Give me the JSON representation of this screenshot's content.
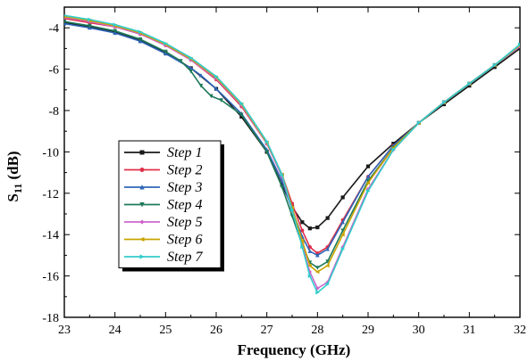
{
  "chart_data": {
    "type": "line",
    "xlabel": "Frequency (GHz)",
    "ylabel_main": "S",
    "ylabel_sub": "11",
    "ylabel_unit": " (dB)",
    "xlim": [
      23,
      32
    ],
    "ylim": [
      -18,
      -3
    ],
    "x_ticks": [
      "23",
      "24",
      "25",
      "26",
      "27",
      "28",
      "29",
      "30",
      "31",
      "32"
    ],
    "y_ticks": [
      "-4",
      "-6",
      "-8",
      "-10",
      "-12",
      "-14",
      "-16",
      "-18"
    ],
    "grid": false,
    "legend_position": "center-left",
    "series": [
      {
        "name": "Step 1",
        "color": "#1a1a1a",
        "marker": "square",
        "points": [
          [
            23,
            -3.75
          ],
          [
            23.5,
            -3.95
          ],
          [
            24,
            -4.2
          ],
          [
            24.5,
            -4.6
          ],
          [
            25,
            -5.2
          ],
          [
            25.5,
            -5.95
          ],
          [
            26,
            -6.95
          ],
          [
            26.5,
            -8.3
          ],
          [
            27,
            -10.0
          ],
          [
            27.3,
            -11.6
          ],
          [
            27.5,
            -12.65
          ],
          [
            27.7,
            -13.4
          ],
          [
            27.85,
            -13.7
          ],
          [
            28,
            -13.65
          ],
          [
            28.2,
            -13.2
          ],
          [
            28.5,
            -12.2
          ],
          [
            29,
            -10.7
          ],
          [
            29.5,
            -9.6
          ],
          [
            30,
            -8.6
          ],
          [
            30.5,
            -7.7
          ],
          [
            31,
            -6.8
          ],
          [
            31.5,
            -5.9
          ],
          [
            32,
            -5.0
          ]
        ]
      },
      {
        "name": "Step 2",
        "color": "#e0304a",
        "marker": "circle",
        "points": [
          [
            23,
            -3.55
          ],
          [
            23.5,
            -3.75
          ],
          [
            24,
            -3.95
          ],
          [
            24.5,
            -4.3
          ],
          [
            25,
            -4.85
          ],
          [
            25.5,
            -5.55
          ],
          [
            26,
            -6.5
          ],
          [
            26.5,
            -7.8
          ],
          [
            27,
            -9.6
          ],
          [
            27.3,
            -11.1
          ],
          [
            27.5,
            -12.5
          ],
          [
            27.7,
            -13.8
          ],
          [
            27.85,
            -14.6
          ],
          [
            28,
            -14.9
          ],
          [
            28.2,
            -14.6
          ],
          [
            28.5,
            -13.3
          ],
          [
            29,
            -11.2
          ],
          [
            29.5,
            -9.7
          ],
          [
            30,
            -8.6
          ],
          [
            30.5,
            -7.6
          ],
          [
            31,
            -6.7
          ],
          [
            31.5,
            -5.8
          ],
          [
            32,
            -4.9
          ]
        ]
      },
      {
        "name": "Step 3",
        "color": "#2f66b8",
        "marker": "triangle",
        "points": [
          [
            23,
            -3.8
          ],
          [
            23.5,
            -4.0
          ],
          [
            24,
            -4.25
          ],
          [
            24.5,
            -4.65
          ],
          [
            25,
            -5.25
          ],
          [
            25.5,
            -5.95
          ],
          [
            25.7,
            -6.3
          ],
          [
            26,
            -6.95
          ],
          [
            26.5,
            -8.15
          ],
          [
            27,
            -9.9
          ],
          [
            27.3,
            -11.4
          ],
          [
            27.5,
            -12.8
          ],
          [
            27.7,
            -14.1
          ],
          [
            27.85,
            -14.8
          ],
          [
            28,
            -15.0
          ],
          [
            28.2,
            -14.7
          ],
          [
            28.5,
            -13.4
          ],
          [
            29,
            -11.2
          ],
          [
            29.5,
            -9.7
          ],
          [
            30,
            -8.6
          ],
          [
            30.5,
            -7.6
          ],
          [
            31,
            -6.7
          ],
          [
            31.5,
            -5.8
          ],
          [
            32,
            -4.9
          ]
        ]
      },
      {
        "name": "Step 4",
        "color": "#1f7a5a",
        "marker": "triangle-down",
        "points": [
          [
            23,
            -3.7
          ],
          [
            23.5,
            -3.9
          ],
          [
            24,
            -4.15
          ],
          [
            24.5,
            -4.55
          ],
          [
            25,
            -5.15
          ],
          [
            25.3,
            -5.6
          ],
          [
            25.5,
            -6.1
          ],
          [
            25.7,
            -6.8
          ],
          [
            25.9,
            -7.3
          ],
          [
            26.1,
            -7.5
          ],
          [
            26.5,
            -8.2
          ],
          [
            27,
            -10.0
          ],
          [
            27.3,
            -11.7
          ],
          [
            27.5,
            -13.1
          ],
          [
            27.7,
            -14.5
          ],
          [
            27.85,
            -15.35
          ],
          [
            28,
            -15.6
          ],
          [
            28.2,
            -15.3
          ],
          [
            28.5,
            -13.8
          ],
          [
            29,
            -11.4
          ],
          [
            29.5,
            -9.8
          ],
          [
            30,
            -8.6
          ],
          [
            30.5,
            -7.6
          ],
          [
            31,
            -6.7
          ],
          [
            31.5,
            -5.8
          ],
          [
            32,
            -4.9
          ]
        ]
      },
      {
        "name": "Step 5",
        "color": "#cc66cc",
        "marker": "diamond",
        "points": [
          [
            23,
            -3.5
          ],
          [
            23.5,
            -3.7
          ],
          [
            24,
            -3.95
          ],
          [
            24.5,
            -4.3
          ],
          [
            25,
            -4.85
          ],
          [
            25.5,
            -5.55
          ],
          [
            26,
            -6.45
          ],
          [
            26.5,
            -7.75
          ],
          [
            27,
            -9.6
          ],
          [
            27.3,
            -11.2
          ],
          [
            27.5,
            -12.8
          ],
          [
            27.7,
            -14.5
          ],
          [
            27.85,
            -15.8
          ],
          [
            28,
            -16.6
          ],
          [
            28.2,
            -16.3
          ],
          [
            28.5,
            -14.6
          ],
          [
            29,
            -11.8
          ],
          [
            29.5,
            -9.9
          ],
          [
            30,
            -8.6
          ],
          [
            30.5,
            -7.6
          ],
          [
            31,
            -6.7
          ],
          [
            31.5,
            -5.8
          ],
          [
            32,
            -4.9
          ]
        ]
      },
      {
        "name": "Step 6",
        "color": "#c9a400",
        "marker": "triangle-left",
        "points": [
          [
            23,
            -3.45
          ],
          [
            23.5,
            -3.65
          ],
          [
            24,
            -3.9
          ],
          [
            24.5,
            -4.25
          ],
          [
            25,
            -4.8
          ],
          [
            25.5,
            -5.5
          ],
          [
            26,
            -6.4
          ],
          [
            26.5,
            -7.7
          ],
          [
            27,
            -9.55
          ],
          [
            27.3,
            -11.1
          ],
          [
            27.5,
            -12.7
          ],
          [
            27.7,
            -14.3
          ],
          [
            27.85,
            -15.5
          ],
          [
            28,
            -15.8
          ],
          [
            28.2,
            -15.5
          ],
          [
            28.5,
            -14.0
          ],
          [
            29,
            -11.5
          ],
          [
            29.5,
            -9.8
          ],
          [
            30,
            -8.6
          ],
          [
            30.5,
            -7.6
          ],
          [
            31,
            -6.7
          ],
          [
            31.5,
            -5.8
          ],
          [
            32,
            -4.85
          ]
        ]
      },
      {
        "name": "Step 7",
        "color": "#33cccc",
        "marker": "triangle-right",
        "points": [
          [
            23,
            -3.4
          ],
          [
            23.5,
            -3.6
          ],
          [
            24,
            -3.85
          ],
          [
            24.5,
            -4.2
          ],
          [
            25,
            -4.75
          ],
          [
            25.5,
            -5.45
          ],
          [
            26,
            -6.35
          ],
          [
            26.5,
            -7.65
          ],
          [
            27,
            -9.5
          ],
          [
            27.3,
            -11.1
          ],
          [
            27.5,
            -12.8
          ],
          [
            27.7,
            -14.6
          ],
          [
            27.85,
            -16.0
          ],
          [
            28,
            -16.8
          ],
          [
            28.2,
            -16.4
          ],
          [
            28.5,
            -14.7
          ],
          [
            29,
            -11.9
          ],
          [
            29.5,
            -9.9
          ],
          [
            30,
            -8.6
          ],
          [
            30.5,
            -7.6
          ],
          [
            31,
            -6.7
          ],
          [
            31.5,
            -5.8
          ],
          [
            32,
            -4.8
          ]
        ]
      }
    ]
  }
}
